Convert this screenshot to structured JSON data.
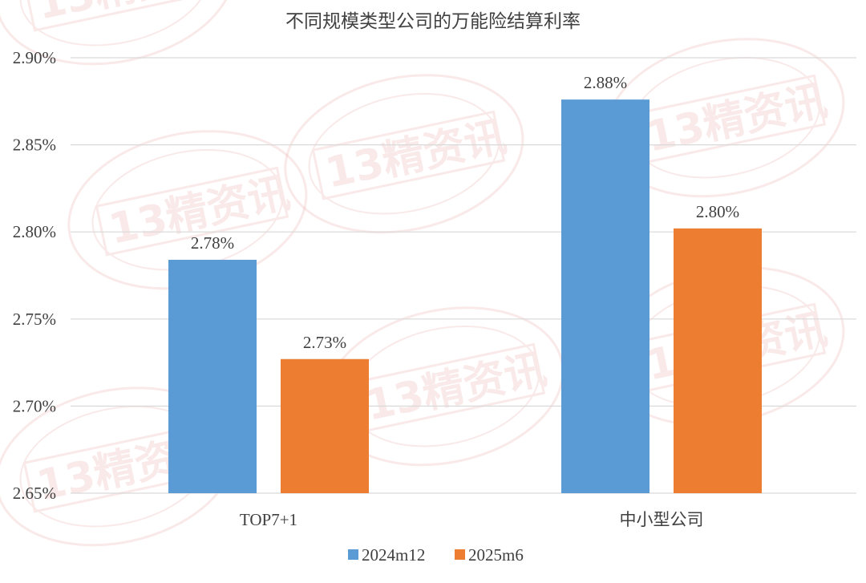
{
  "chart_data": {
    "type": "bar",
    "title": "不同规模类型公司的万能险结算利率",
    "categories": [
      "TOP7+1",
      "中小型公司"
    ],
    "series": [
      {
        "name": "2024m12",
        "values": [
          2.784,
          2.876
        ],
        "labels": [
          "2.78%",
          "2.88%"
        ],
        "color": "#5b9bd5"
      },
      {
        "name": "2025m6",
        "values": [
          2.727,
          2.802
        ],
        "labels": [
          "2.73%",
          "2.80%"
        ],
        "color": "#ed7d31"
      }
    ],
    "ylim": [
      2.65,
      2.9
    ],
    "yticks": [
      2.9,
      2.85,
      2.8,
      2.75,
      2.7,
      2.65
    ],
    "ytick_labels": [
      "2.90%",
      "2.85%",
      "2.80%",
      "2.75%",
      "2.70%",
      "2.65%"
    ],
    "xlabel": "",
    "ylabel": "",
    "grid": true,
    "legend": "bottom"
  },
  "watermark": {
    "text": "13精资讯",
    "color": "#e8a0a0"
  }
}
